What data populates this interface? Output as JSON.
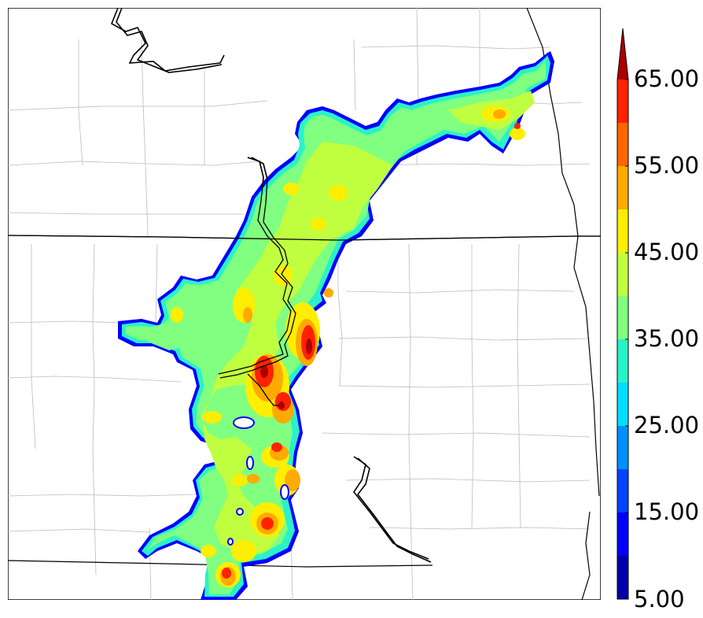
{
  "colorbar": {
    "labels": [
      "5.00",
      "15.00",
      "25.00",
      "35.00",
      "45.00",
      "55.00",
      "65.00"
    ],
    "levels": [
      5,
      10,
      15,
      20,
      25,
      30,
      35,
      40,
      45,
      50,
      55,
      60,
      65,
      70
    ],
    "colors": [
      "#0000aa",
      "#0000ff",
      "#0044ff",
      "#0090ff",
      "#00ddff",
      "#2af2c8",
      "#80ff80",
      "#c0ff40",
      "#ffee00",
      "#ffaa00",
      "#ff6600",
      "#ff2200",
      "#aa0000"
    ],
    "extend": "max"
  },
  "map": {
    "field_colors": {
      "fringe": "#0000ff",
      "low": "#2af2c8",
      "mid": "#80ff80",
      "high": "#c0ff40",
      "yellow": "#ffee00",
      "orange": "#ffaa00",
      "red": "#ff2200",
      "darkred": "#aa0000"
    }
  }
}
